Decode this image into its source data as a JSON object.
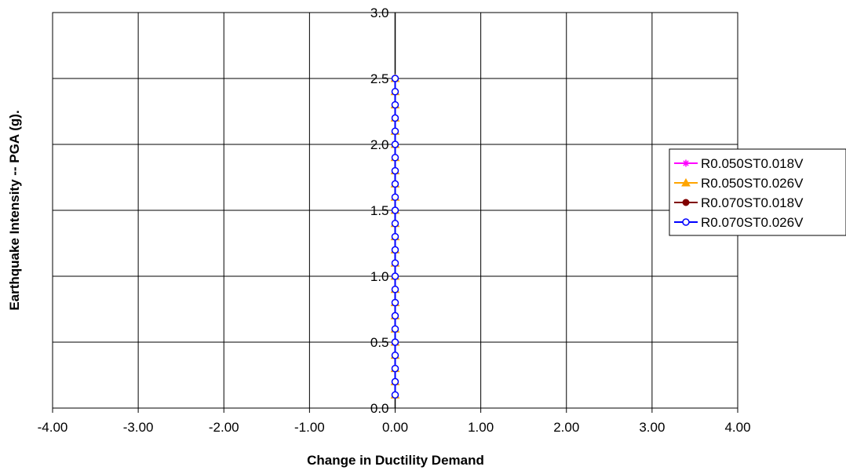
{
  "chart_data": {
    "type": "line",
    "xlabel": "Change in Ductility Demand",
    "ylabel": "Earthquake Intensity -- PGA (g).",
    "xlim": [
      -4,
      4
    ],
    "ylim": [
      0,
      3
    ],
    "x_ticks": [
      "-4.00",
      "-3.00",
      "-2.00",
      "-1.00",
      "0.00",
      "1.00",
      "2.00",
      "3.00",
      "4.00"
    ],
    "y_ticks": [
      "0.0",
      "0.5",
      "1.0",
      "1.5",
      "2.0",
      "2.5",
      "3.0"
    ],
    "grid": true,
    "legend_position": "right",
    "y": [
      0.1,
      0.2,
      0.3,
      0.4,
      0.5,
      0.6,
      0.7,
      0.8,
      0.9,
      1.0,
      1.1,
      1.2,
      1.3,
      1.4,
      1.5,
      1.6,
      1.7,
      1.8,
      1.9,
      2.0,
      2.1,
      2.2,
      2.3,
      2.4,
      2.5
    ],
    "series": [
      {
        "name": "R0.050ST0.018V",
        "color": "#ff00ff",
        "marker": "star",
        "x": [
          0,
          0,
          0,
          0,
          0,
          0,
          0,
          0,
          0,
          0,
          0,
          0,
          0,
          0,
          0,
          0,
          0,
          0,
          0,
          0,
          0,
          0,
          0,
          0,
          0
        ]
      },
      {
        "name": "R0.050ST0.026V",
        "color": "#ffa500",
        "marker": "triangle",
        "x": [
          0,
          0,
          0,
          0,
          0,
          0,
          0,
          0,
          0,
          0,
          0,
          0,
          0,
          0,
          0,
          0,
          0,
          0,
          0,
          0,
          0,
          0,
          0,
          0,
          0
        ]
      },
      {
        "name": "R0.070ST0.018V",
        "color": "#800000",
        "marker": "circle-filled",
        "x": [
          0,
          0,
          0,
          0,
          0,
          0,
          0,
          0,
          0,
          0,
          0,
          0,
          0,
          0,
          0,
          0,
          0,
          0,
          0,
          0,
          0,
          0,
          0,
          0,
          0
        ]
      },
      {
        "name": "R0.070ST0.026V",
        "color": "#0000ff",
        "marker": "circle-open",
        "x": [
          0,
          0,
          0,
          0,
          0,
          0,
          0,
          0,
          0,
          0,
          0,
          0,
          0,
          0,
          0,
          0,
          0,
          0,
          0,
          0,
          0,
          0,
          0,
          0,
          0
        ]
      }
    ]
  }
}
